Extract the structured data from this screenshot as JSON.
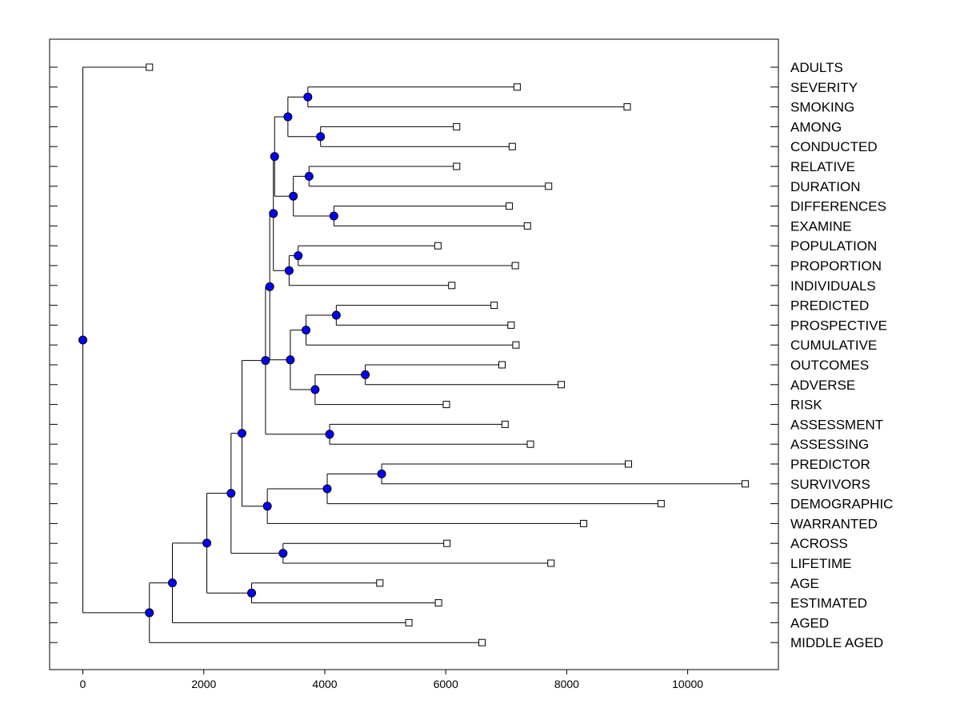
{
  "chart_data": {
    "type": "dendrogram",
    "title": "",
    "xlabel": "",
    "ylabel": "",
    "xlim": [
      -550,
      11500
    ],
    "xticks": [
      0,
      2000,
      4000,
      6000,
      8000,
      10000
    ],
    "xtick_labels": [
      "0",
      "2000",
      "4000",
      "6000",
      "8000",
      "10000"
    ],
    "grid": false,
    "leaves": [
      {
        "label": "ADULTS",
        "value": 1100
      },
      {
        "label": "SEVERITY",
        "value": 7180
      },
      {
        "label": "SMOKING",
        "value": 9000
      },
      {
        "label": "AMONG",
        "value": 6180
      },
      {
        "label": "CONDUCTED",
        "value": 7100
      },
      {
        "label": "RELATIVE",
        "value": 6180
      },
      {
        "label": "DURATION",
        "value": 7700
      },
      {
        "label": "DIFFERENCES",
        "value": 7050
      },
      {
        "label": "EXAMINE",
        "value": 7350
      },
      {
        "label": "POPULATION",
        "value": 5870
      },
      {
        "label": "PROPORTION",
        "value": 7150
      },
      {
        "label": "INDIVIDUALS",
        "value": 6100
      },
      {
        "label": "PREDICTED",
        "value": 6800
      },
      {
        "label": "PROSPECTIVE",
        "value": 7080
      },
      {
        "label": "CUMULATIVE",
        "value": 7160
      },
      {
        "label": "OUTCOMES",
        "value": 6930
      },
      {
        "label": "ADVERSE",
        "value": 7910
      },
      {
        "label": "RISK",
        "value": 6010
      },
      {
        "label": "ASSESSMENT",
        "value": 6980
      },
      {
        "label": "ASSESSING",
        "value": 7400
      },
      {
        "label": "PREDICTOR",
        "value": 9020
      },
      {
        "label": "SURVIVORS",
        "value": 10950
      },
      {
        "label": "DEMOGRAPHIC",
        "value": 9560
      },
      {
        "label": "WARRANTED",
        "value": 8280
      },
      {
        "label": "ACROSS",
        "value": 6020
      },
      {
        "label": "LIFETIME",
        "value": 7740
      },
      {
        "label": "AGE",
        "value": 4910
      },
      {
        "label": "ESTIMATED",
        "value": 5880
      },
      {
        "label": "AGED",
        "value": 5390
      },
      {
        "label": "MIDDLE AGED",
        "value": 6600
      }
    ],
    "nodes": [
      {
        "id": "n_sev_smok",
        "value": 3720,
        "children": [
          "SEVERITY",
          "SMOKING"
        ]
      },
      {
        "id": "n_among_cond",
        "value": 3930,
        "children": [
          "AMONG",
          "CONDUCTED"
        ]
      },
      {
        "id": "n_top2",
        "value": 3390,
        "children": [
          "n_sev_smok",
          "n_among_cond"
        ]
      },
      {
        "id": "n_rel_dur",
        "value": 3740,
        "children": [
          "RELATIVE",
          "DURATION"
        ]
      },
      {
        "id": "n_diff_exam",
        "value": 4150,
        "children": [
          "DIFFERENCES",
          "EXAMINE"
        ]
      },
      {
        "id": "n_mid2",
        "value": 3480,
        "children": [
          "n_rel_dur",
          "n_diff_exam"
        ]
      },
      {
        "id": "n_upper",
        "value": 3170,
        "children": [
          "n_top2",
          "n_mid2"
        ]
      },
      {
        "id": "n_pop_prop",
        "value": 3560,
        "children": [
          "POPULATION",
          "PROPORTION"
        ]
      },
      {
        "id": "n_ppi",
        "value": 3410,
        "children": [
          "n_pop_prop",
          "INDIVIDUALS"
        ]
      },
      {
        "id": "n_upper2",
        "value": 3150,
        "children": [
          "n_upper",
          "n_ppi"
        ]
      },
      {
        "id": "n_pred_prosp",
        "value": 4190,
        "children": [
          "PREDICTED",
          "PROSPECTIVE"
        ]
      },
      {
        "id": "n_ppc",
        "value": 3690,
        "children": [
          "n_pred_prosp",
          "CUMULATIVE"
        ]
      },
      {
        "id": "n_out_adv",
        "value": 4670,
        "children": [
          "OUTCOMES",
          "ADVERSE"
        ]
      },
      {
        "id": "n_oar",
        "value": 3840,
        "children": [
          "n_out_adv",
          "RISK"
        ]
      },
      {
        "id": "n_mid",
        "value": 3430,
        "children": [
          "n_ppc",
          "n_oar"
        ]
      },
      {
        "id": "n_top3",
        "value": 3090,
        "children": [
          "n_upper2",
          "n_mid"
        ]
      },
      {
        "id": "n_assess",
        "value": 4080,
        "children": [
          "ASSESSMENT",
          "ASSESSING"
        ]
      },
      {
        "id": "n_block",
        "value": 3020,
        "children": [
          "n_top3",
          "n_assess"
        ]
      },
      {
        "id": "n_pred_surv",
        "value": 4940,
        "children": [
          "PREDICTOR",
          "SURVIVORS"
        ]
      },
      {
        "id": "n_psd",
        "value": 4040,
        "children": [
          "n_pred_surv",
          "DEMOGRAPHIC"
        ]
      },
      {
        "id": "n_psdw",
        "value": 3050,
        "children": [
          "n_psd",
          "WARRANTED"
        ]
      },
      {
        "id": "n_big",
        "value": 2630,
        "children": [
          "n_block",
          "n_psdw"
        ]
      },
      {
        "id": "n_across_life",
        "value": 3310,
        "children": [
          "ACROSS",
          "LIFETIME"
        ]
      },
      {
        "id": "n_big2",
        "value": 2450,
        "children": [
          "n_big",
          "n_across_life"
        ]
      },
      {
        "id": "n_age_est",
        "value": 2790,
        "children": [
          "AGE",
          "ESTIMATED"
        ]
      },
      {
        "id": "n_big3",
        "value": 2050,
        "children": [
          "n_big2",
          "n_age_est"
        ]
      },
      {
        "id": "n_big4",
        "value": 1480,
        "children": [
          "n_big3",
          "AGED"
        ]
      },
      {
        "id": "n_big5",
        "value": 1100,
        "children": [
          "n_big4",
          "MIDDLE AGED"
        ]
      },
      {
        "id": "n_root",
        "value": 0,
        "children": [
          "ADULTS",
          "n_big5"
        ]
      }
    ],
    "colors": {
      "node_fill": "#0000ff",
      "leaf_fill": "#ffffff",
      "line": "#000000"
    }
  }
}
